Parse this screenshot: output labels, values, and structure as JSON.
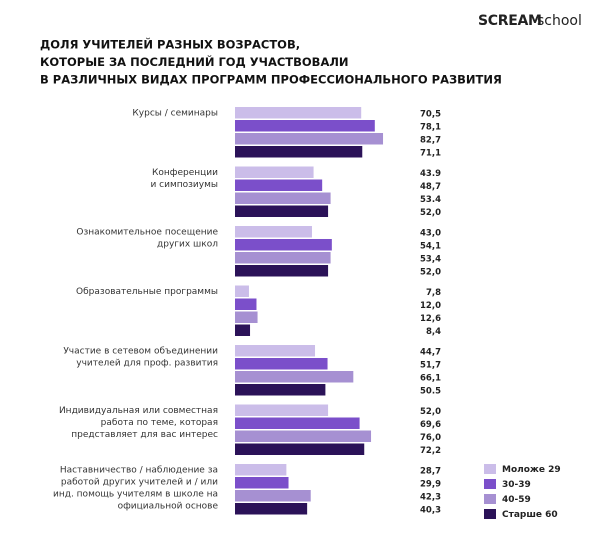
{
  "logo": {
    "brand": "SCREAM",
    "suffix": "school"
  },
  "chart_data": {
    "type": "bar",
    "orientation": "horizontal",
    "title": [
      "ДОЛЯ УЧИТЕЛЕЙ РАЗНЫХ ВОЗРАСТОВ,",
      "КОТОРЫЕ ЗА ПОСЛЕДНИЙ ГОД УЧАСТВОВАЛИ",
      "В РАЗЛИЧНЫХ ВИДАХ ПРОГРАММ ПРОФЕССИОНАЛЬНОГО РАЗВИТИЯ"
    ],
    "categories": [
      [
        "Курсы / семинары"
      ],
      [
        "Конференции",
        "и симпозиумы"
      ],
      [
        "Ознакомительное посещение",
        "других школ"
      ],
      [
        "Образовательные программы"
      ],
      [
        "Участие в сетевом объединении",
        "учителей для проф. развития"
      ],
      [
        "Индивидуальная или совместная",
        "работа по теме, которая",
        "представляет для вас интерес"
      ],
      [
        "Наставничество / наблюдение за",
        "работой других учителей и / или",
        "инд. помощь учителям в школе на",
        "официальной основе"
      ]
    ],
    "series": [
      {
        "name": "Моложе 29",
        "color": "#cbbde9",
        "values": [
          70.5,
          43.9,
          43.0,
          7.8,
          44.7,
          52.0,
          28.7
        ],
        "value_labels": [
          "70,5",
          "43.9",
          "43,0",
          "7,8",
          "44,7",
          "52,0",
          "28,7"
        ]
      },
      {
        "name": "30-39",
        "color": "#7b4fca",
        "values": [
          78.1,
          48.7,
          54.1,
          12.0,
          51.7,
          69.6,
          29.9
        ],
        "value_labels": [
          "78,1",
          "48,7",
          "54,1",
          "12,0",
          "51,7",
          "69,6",
          "29,9"
        ]
      },
      {
        "name": "40-59",
        "color": "#a690d2",
        "values": [
          82.7,
          53.4,
          53.4,
          12.6,
          66.1,
          76.0,
          42.3
        ],
        "value_labels": [
          "82,7",
          "53.4",
          "53,4",
          "12,6",
          "66,1",
          "76,0",
          "42,3"
        ]
      },
      {
        "name": "Старше 60",
        "color": "#2b1258",
        "values": [
          71.1,
          52.0,
          52.0,
          8.4,
          50.5,
          72.2,
          40.3
        ],
        "value_labels": [
          "71,1",
          "52,0",
          "52,0",
          "8,4",
          "50.5",
          "72,2",
          "40,3"
        ]
      }
    ]
  }
}
